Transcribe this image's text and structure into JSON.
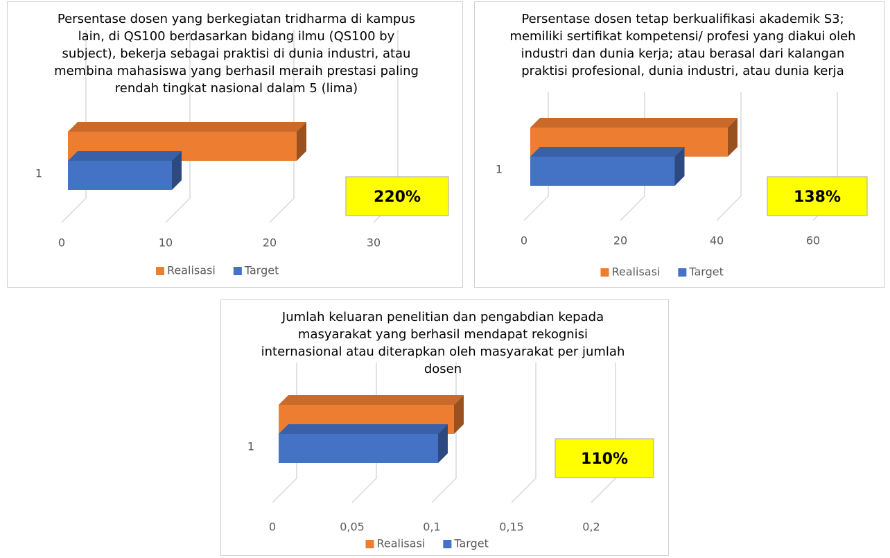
{
  "chart_data": [
    {
      "type": "bar3d",
      "title": "Persentase dosen yang berkegiatan tridharma di kampus lain, di QS100 berdasarkan bidang ilmu (QS100 by subject), bekerja sebagai praktisi di dunia industri, atau membina mahasiswa yang berhasil meraih prestasi paling rendah tingkat nasional dalam 5 (lima)",
      "categories": [
        "1"
      ],
      "series": [
        {
          "name": "Realisasi",
          "color": "#ed7d31",
          "values": [
            22
          ]
        },
        {
          "name": "Target",
          "color": "#4472c4",
          "values": [
            10
          ]
        }
      ],
      "xlim": [
        0,
        30
      ],
      "xticks": [
        0,
        10,
        20,
        30
      ],
      "annotation": "220%",
      "grid": true,
      "legend": "bottom"
    },
    {
      "type": "bar3d",
      "title": "Persentase dosen tetap berkualifikasi akademik S3; memiliki sertifikat kompetensi/ profesi yang diakui oleh industri dan dunia kerja; atau berasal dari kalangan praktisi profesional, dunia industri, atau dunia kerja",
      "categories": [
        "1"
      ],
      "series": [
        {
          "name": "Realisasi",
          "color": "#ed7d31",
          "values": [
            41
          ]
        },
        {
          "name": "Target",
          "color": "#4472c4",
          "values": [
            30
          ]
        }
      ],
      "xlim": [
        0,
        60
      ],
      "xticks": [
        0,
        20,
        40,
        60
      ],
      "annotation": "138%",
      "grid": true,
      "legend": "bottom"
    },
    {
      "type": "bar3d",
      "title": "Jumlah keluaran penelitian dan pengabdian kepada masyarakat yang berhasil mendapat rekognisi internasional atau diterapkan oleh masyarakat per jumlah dosen",
      "categories": [
        "1"
      ],
      "series": [
        {
          "name": "Realisasi",
          "color": "#ed7d31",
          "values": [
            0.11
          ]
        },
        {
          "name": "Target",
          "color": "#4472c4",
          "values": [
            0.1
          ]
        }
      ],
      "xlim": [
        0,
        0.2
      ],
      "xticks": [
        0,
        {
          "value": 0.05,
          "label": "0,05"
        },
        {
          "value": 0.1,
          "label": "0,1"
        },
        {
          "value": 0.15,
          "label": "0,15"
        },
        {
          "value": 0.2,
          "label": "0,2"
        }
      ],
      "annotation": "110%",
      "grid": true,
      "legend": "bottom"
    }
  ]
}
